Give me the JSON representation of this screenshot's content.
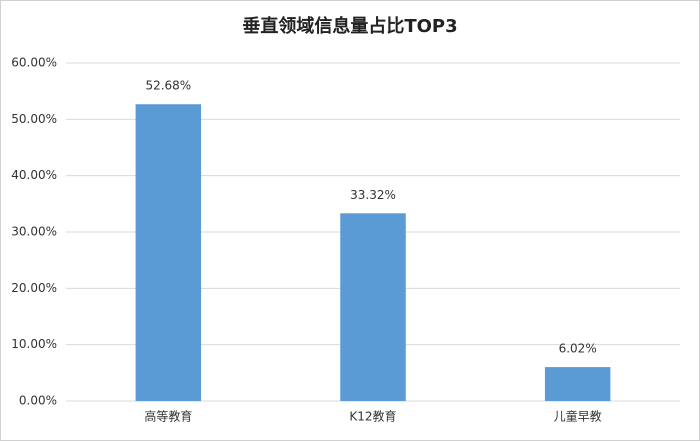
{
  "chart_data": {
    "type": "bar",
    "title": "垂直领域信息量占比TOP3",
    "categories": [
      "高等教育",
      "K12教育",
      "儿童早教"
    ],
    "values": [
      52.68,
      33.32,
      6.02
    ],
    "value_labels": [
      "52.68%",
      "33.32%",
      "6.02%"
    ],
    "color": "#5b9bd5",
    "ylim": [
      0,
      60
    ],
    "yticks": [
      {
        "value": 0,
        "label": "0.00%"
      },
      {
        "value": 10,
        "label": "10.00%"
      },
      {
        "value": 20,
        "label": "20.00%"
      },
      {
        "value": 30,
        "label": "30.00%"
      },
      {
        "value": 40,
        "label": "40.00%"
      },
      {
        "value": 50,
        "label": "50.00%"
      },
      {
        "value": 60,
        "label": "60.00%"
      }
    ],
    "grid": true
  }
}
